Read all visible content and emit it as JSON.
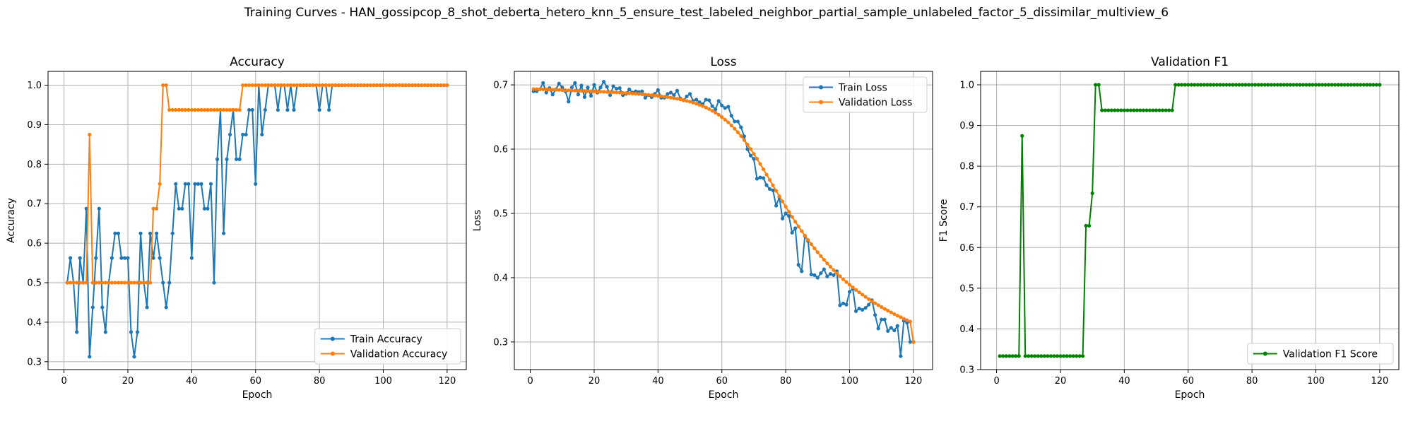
{
  "figure": {
    "title": "Training Curves - HAN_gossipcop_8_shot_deberta_hetero_knn_5_ensure_test_labeled_neighbor_partial_sample_unlabeled_factor_5_dissimilar_multiview_6"
  },
  "chart_data": [
    {
      "type": "line",
      "title": "Accuracy",
      "xlabel": "Epoch",
      "ylabel": "Accuracy",
      "xlim": [
        -5,
        126
      ],
      "ylim": [
        0.28,
        1.035
      ],
      "xticks": [
        0,
        20,
        40,
        60,
        80,
        100,
        120
      ],
      "yticks": [
        0.3,
        0.4,
        0.5,
        0.6,
        0.7,
        0.8,
        0.9,
        1.0
      ],
      "xtick_labels": [
        "0",
        "20",
        "40",
        "60",
        "80",
        "100",
        "120"
      ],
      "ytick_labels": [
        "0.3",
        "0.4",
        "0.5",
        "0.6",
        "0.7",
        "0.8",
        "0.9",
        "1.0"
      ],
      "grid": true,
      "legend_position": "lower-right",
      "series": [
        {
          "name": "Train Accuracy",
          "color": "#1f77b4",
          "x_start": 1,
          "values": [
            0.5,
            0.5625,
            0.5,
            0.375,
            0.5625,
            0.5,
            0.6875,
            0.3125,
            0.4375,
            0.5625,
            0.6875,
            0.4375,
            0.375,
            0.5,
            0.5625,
            0.625,
            0.625,
            0.5625,
            0.5625,
            0.5625,
            0.375,
            0.3125,
            0.375,
            0.625,
            0.5,
            0.4375,
            0.625,
            0.5625,
            0.625,
            0.5625,
            0.5,
            0.4375,
            0.5,
            0.625,
            0.75,
            0.6875,
            0.6875,
            0.75,
            0.75,
            0.5625,
            0.75,
            0.75,
            0.75,
            0.6875,
            0.6875,
            0.75,
            0.5,
            0.8125,
            0.9375,
            0.625,
            0.8125,
            0.875,
            0.9375,
            0.8125,
            0.8125,
            0.875,
            0.875,
            0.9375,
            0.9375,
            0.75,
            1.0,
            0.875,
            0.9375,
            1.0,
            1.0,
            1.0,
            0.9375,
            1.0,
            1.0,
            0.9375,
            1.0,
            0.9375,
            1.0,
            1.0,
            1.0,
            1.0,
            1.0,
            1.0,
            1.0,
            0.9375,
            1.0,
            1.0,
            0.9375,
            1.0,
            1.0,
            1.0,
            1.0,
            1.0,
            1.0,
            1.0,
            1.0,
            1.0,
            1.0,
            1.0,
            1.0,
            1.0,
            1.0,
            1.0,
            1.0,
            1.0,
            1.0,
            1.0,
            1.0,
            1.0,
            1.0,
            1.0,
            1.0,
            1.0,
            1.0,
            1.0,
            1.0,
            1.0,
            1.0,
            1.0,
            1.0,
            1.0,
            1.0,
            1.0,
            1.0,
            1.0
          ]
        },
        {
          "name": "Validation Accuracy",
          "color": "#ff7f0e",
          "x_start": 1,
          "values": [
            0.5,
            0.5,
            0.5,
            0.5,
            0.5,
            0.5,
            0.5,
            0.875,
            0.5,
            0.5,
            0.5,
            0.5,
            0.5,
            0.5,
            0.5,
            0.5,
            0.5,
            0.5,
            0.5,
            0.5,
            0.5,
            0.5,
            0.5,
            0.5,
            0.5,
            0.5,
            0.5,
            0.6875,
            0.6875,
            0.75,
            1.0,
            1.0,
            0.9375,
            0.9375,
            0.9375,
            0.9375,
            0.9375,
            0.9375,
            0.9375,
            0.9375,
            0.9375,
            0.9375,
            0.9375,
            0.9375,
            0.9375,
            0.9375,
            0.9375,
            0.9375,
            0.9375,
            0.9375,
            0.9375,
            0.9375,
            0.9375,
            0.9375,
            0.9375,
            1.0,
            1.0,
            1.0,
            1.0,
            1.0,
            1.0,
            1.0,
            1.0,
            1.0,
            1.0,
            1.0,
            1.0,
            1.0,
            1.0,
            1.0,
            1.0,
            1.0,
            1.0,
            1.0,
            1.0,
            1.0,
            1.0,
            1.0,
            1.0,
            1.0,
            1.0,
            1.0,
            1.0,
            1.0,
            1.0,
            1.0,
            1.0,
            1.0,
            1.0,
            1.0,
            1.0,
            1.0,
            1.0,
            1.0,
            1.0,
            1.0,
            1.0,
            1.0,
            1.0,
            1.0,
            1.0,
            1.0,
            1.0,
            1.0,
            1.0,
            1.0,
            1.0,
            1.0,
            1.0,
            1.0,
            1.0,
            1.0,
            1.0,
            1.0,
            1.0,
            1.0,
            1.0,
            1.0,
            1.0,
            1.0
          ]
        }
      ]
    },
    {
      "type": "line",
      "title": "Loss",
      "xlabel": "Epoch",
      "ylabel": "Loss",
      "xlim": [
        -5,
        126
      ],
      "ylim": [
        0.257,
        0.721
      ],
      "xticks": [
        0,
        20,
        40,
        60,
        80,
        100,
        120
      ],
      "yticks": [
        0.3,
        0.4,
        0.5,
        0.6,
        0.7
      ],
      "xtick_labels": [
        "0",
        "20",
        "40",
        "60",
        "80",
        "100",
        "120"
      ],
      "ytick_labels": [
        "0.3",
        "0.4",
        "0.5",
        "0.6",
        "0.7"
      ],
      "grid": true,
      "legend_position": "upper-right",
      "series": [
        {
          "name": "Train Loss",
          "color": "#1f77b4",
          "x_start": 1,
          "values": [
            0.69,
            0.69,
            0.693,
            0.703,
            0.688,
            0.695,
            0.685,
            0.693,
            0.702,
            0.696,
            0.69,
            0.674,
            0.696,
            0.703,
            0.685,
            0.699,
            0.681,
            0.696,
            0.683,
            0.7,
            0.688,
            0.696,
            0.705,
            0.697,
            0.684,
            0.698,
            0.694,
            0.695,
            0.684,
            0.686,
            0.693,
            0.688,
            0.69,
            0.689,
            0.69,
            0.68,
            0.684,
            0.681,
            0.686,
            0.692,
            0.68,
            0.68,
            0.686,
            0.688,
            0.684,
            0.691,
            0.679,
            0.676,
            0.682,
            0.686,
            0.675,
            0.677,
            0.673,
            0.67,
            0.677,
            0.676,
            0.667,
            0.662,
            0.675,
            0.668,
            0.664,
            0.666,
            0.652,
            0.643,
            0.643,
            0.634,
            0.62,
            0.6,
            0.59,
            0.585,
            0.554,
            0.556,
            0.555,
            0.544,
            0.538,
            0.536,
            0.512,
            0.525,
            0.492,
            0.5,
            0.496,
            0.47,
            0.477,
            0.42,
            0.41,
            0.465,
            0.457,
            0.405,
            0.404,
            0.4,
            0.407,
            0.413,
            0.402,
            0.406,
            0.404,
            0.41,
            0.357,
            0.36,
            0.358,
            0.378,
            0.383,
            0.348,
            0.352,
            0.35,
            0.353,
            0.358,
            0.365,
            0.342,
            0.321,
            0.335,
            0.335,
            0.317,
            0.322,
            0.318,
            0.325,
            0.278,
            0.333,
            0.33,
            0.3,
            0.3
          ]
        },
        {
          "name": "Validation Loss",
          "color": "#ff7f0e",
          "x_start": 1,
          "values": [
            0.6935,
            0.6933,
            0.6932,
            0.693,
            0.6928,
            0.6926,
            0.6925,
            0.6923,
            0.6921,
            0.6919,
            0.6917,
            0.6915,
            0.6913,
            0.6911,
            0.6909,
            0.6907,
            0.6905,
            0.6903,
            0.6901,
            0.6899,
            0.6896,
            0.6894,
            0.6892,
            0.6889,
            0.6887,
            0.6884,
            0.6881,
            0.6878,
            0.6875,
            0.6872,
            0.6869,
            0.6865,
            0.6862,
            0.6858,
            0.6854,
            0.6849,
            0.6845,
            0.684,
            0.6834,
            0.6829,
            0.6823,
            0.6816,
            0.6809,
            0.6801,
            0.6793,
            0.6784,
            0.6774,
            0.6763,
            0.6751,
            0.6738,
            0.6723,
            0.6707,
            0.6689,
            0.667,
            0.6648,
            0.6624,
            0.6597,
            0.6568,
            0.6535,
            0.6499,
            0.6459,
            0.6416,
            0.6369,
            0.6318,
            0.6262,
            0.6203,
            0.614,
            0.6072,
            0.6001,
            0.5926,
            0.5849,
            0.5769,
            0.5687,
            0.5604,
            0.552,
            0.5436,
            0.5352,
            0.5268,
            0.5186,
            0.5105,
            0.5025,
            0.4947,
            0.4871,
            0.4797,
            0.4725,
            0.4655,
            0.4587,
            0.4521,
            0.4457,
            0.4395,
            0.4336,
            0.4279,
            0.4223,
            0.417,
            0.4119,
            0.4069,
            0.4022,
            0.3976,
            0.3932,
            0.389,
            0.3849,
            0.381,
            0.3772,
            0.3736,
            0.3701,
            0.3667,
            0.3634,
            0.3603,
            0.3572,
            0.3543,
            0.3514,
            0.3487,
            0.346,
            0.3434,
            0.3409,
            0.3385,
            0.3361,
            0.3338,
            0.3316,
            0.2995
          ]
        }
      ]
    },
    {
      "type": "line",
      "title": "Validation F1",
      "xlabel": "Epoch",
      "ylabel": "F1 Score",
      "xlim": [
        -5,
        126
      ],
      "ylim": [
        0.3,
        1.033
      ],
      "xticks": [
        0,
        20,
        40,
        60,
        80,
        100,
        120
      ],
      "yticks": [
        0.3,
        0.4,
        0.5,
        0.6,
        0.7,
        0.8,
        0.9,
        1.0
      ],
      "xtick_labels": [
        "0",
        "20",
        "40",
        "60",
        "80",
        "100",
        "120"
      ],
      "ytick_labels": [
        "0.3",
        "0.4",
        "0.5",
        "0.6",
        "0.7",
        "0.8",
        "0.9",
        "1.0"
      ],
      "grid": true,
      "legend_position": "lower-right",
      "series": [
        {
          "name": "Validation F1 Score",
          "color": "#008000",
          "x_start": 1,
          "values": [
            0.3333,
            0.3333,
            0.3333,
            0.3333,
            0.3333,
            0.3333,
            0.3333,
            0.8745,
            0.3333,
            0.3333,
            0.3333,
            0.3333,
            0.3333,
            0.3333,
            0.3333,
            0.3333,
            0.3333,
            0.3333,
            0.3333,
            0.3333,
            0.3333,
            0.3333,
            0.3333,
            0.3333,
            0.3333,
            0.3333,
            0.3333,
            0.6536,
            0.6536,
            0.7333,
            1.0,
            1.0,
            0.9373,
            0.9373,
            0.9373,
            0.9373,
            0.9373,
            0.9373,
            0.9373,
            0.9373,
            0.9373,
            0.9373,
            0.9373,
            0.9373,
            0.9373,
            0.9373,
            0.9373,
            0.9373,
            0.9373,
            0.9373,
            0.9373,
            0.9373,
            0.9373,
            0.9373,
            0.9373,
            1.0,
            1.0,
            1.0,
            1.0,
            1.0,
            1.0,
            1.0,
            1.0,
            1.0,
            1.0,
            1.0,
            1.0,
            1.0,
            1.0,
            1.0,
            1.0,
            1.0,
            1.0,
            1.0,
            1.0,
            1.0,
            1.0,
            1.0,
            1.0,
            1.0,
            1.0,
            1.0,
            1.0,
            1.0,
            1.0,
            1.0,
            1.0,
            1.0,
            1.0,
            1.0,
            1.0,
            1.0,
            1.0,
            1.0,
            1.0,
            1.0,
            1.0,
            1.0,
            1.0,
            1.0,
            1.0,
            1.0,
            1.0,
            1.0,
            1.0,
            1.0,
            1.0,
            1.0,
            1.0,
            1.0,
            1.0,
            1.0,
            1.0,
            1.0,
            1.0,
            1.0,
            1.0,
            1.0,
            1.0,
            1.0
          ]
        }
      ]
    }
  ]
}
